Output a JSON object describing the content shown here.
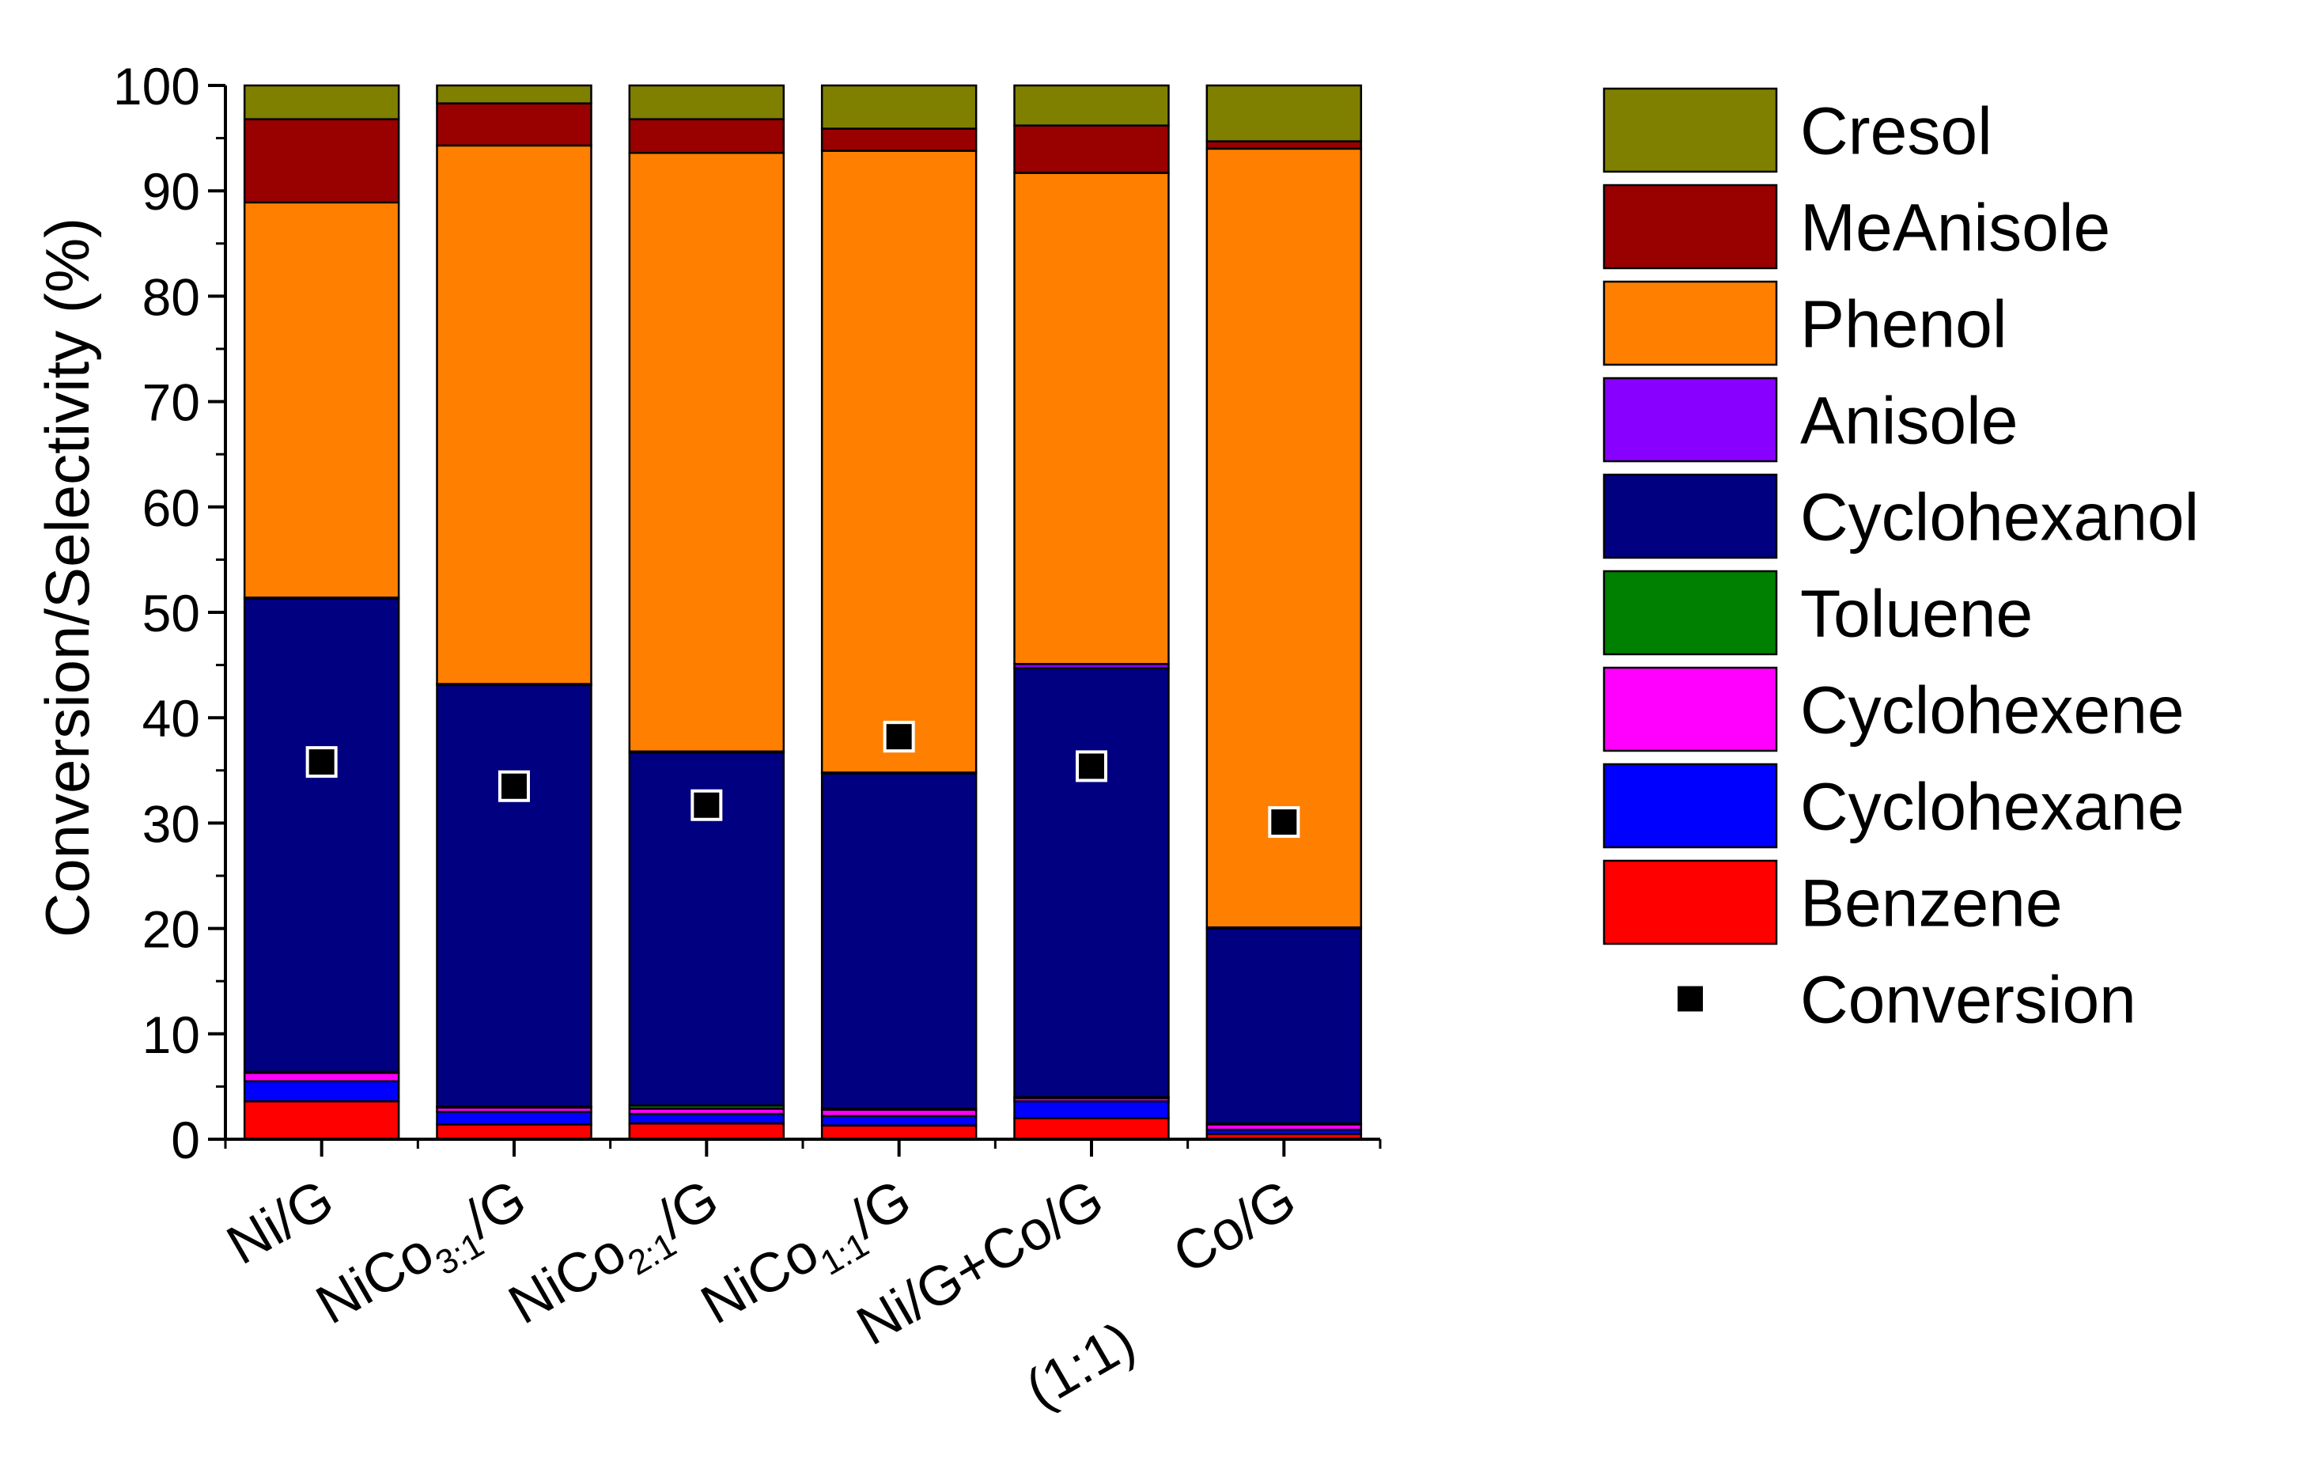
{
  "colors": {
    "Cresol": "#808000",
    "MeAnisole": "#990000",
    "Phenol": "#FF8000",
    "Anisole": "#8800FF",
    "Cyclohexanol": "#000080",
    "Toluene": "#008000",
    "Cyclohexene": "#FF00FF",
    "Cyclohexane": "#0000FF",
    "Benzene": "#FF0000",
    "Conversion": "#000000"
  },
  "chart_data": {
    "type": "bar",
    "stacked": true,
    "title": "",
    "xlabel": "",
    "ylabel": "Conversion/Selectivity (%)",
    "ylim": [
      0,
      100
    ],
    "yticks": [
      "0",
      "10",
      "20",
      "30",
      "40",
      "50",
      "60",
      "70",
      "80",
      "90",
      "100"
    ],
    "categories": [
      {
        "main": "Ni/G",
        "sub": "",
        "tail": "",
        "line2": ""
      },
      {
        "main": "NiCo",
        "sub": "3:1",
        "tail": "/G",
        "line2": ""
      },
      {
        "main": "NiCo",
        "sub": "2:1",
        "tail": "/G",
        "line2": ""
      },
      {
        "main": "NiCo",
        "sub": "1:1",
        "tail": "/G",
        "line2": ""
      },
      {
        "main": "Ni/G+Co/G",
        "sub": "",
        "tail": "",
        "line2": "(1:1)"
      },
      {
        "main": "Co/G",
        "sub": "",
        "tail": "",
        "line2": ""
      }
    ],
    "series": [
      {
        "name": "Benzene",
        "values": [
          3.6,
          1.4,
          1.5,
          1.3,
          2.0,
          0.5
        ]
      },
      {
        "name": "Cyclohexane",
        "values": [
          1.9,
          1.2,
          0.9,
          0.9,
          1.6,
          0.4
        ]
      },
      {
        "name": "Cyclohexene",
        "values": [
          0.8,
          0.4,
          0.5,
          0.6,
          0.3,
          0.5
        ]
      },
      {
        "name": "Toluene",
        "values": [
          0.1,
          0.1,
          0.3,
          0.1,
          0.1,
          0.1
        ]
      },
      {
        "name": "Cyclohexanol",
        "values": [
          44.9,
          40.0,
          33.5,
          31.8,
          40.7,
          18.5
        ]
      },
      {
        "name": "Anisole",
        "values": [
          0.1,
          0.1,
          0.1,
          0.1,
          0.4,
          0.1
        ]
      },
      {
        "name": "Phenol",
        "values": [
          37.5,
          51.1,
          56.8,
          59.0,
          46.6,
          73.9
        ]
      },
      {
        "name": "MeAnisole",
        "values": [
          7.9,
          4.0,
          3.2,
          2.1,
          4.5,
          0.7
        ]
      },
      {
        "name": "Cresol",
        "values": [
          3.2,
          1.7,
          3.2,
          4.1,
          3.8,
          5.3
        ]
      }
    ],
    "conversion": {
      "name": "Conversion",
      "values": [
        35.8,
        33.5,
        31.7,
        38.2,
        35.4,
        30.1
      ]
    },
    "legend": {
      "position": "right",
      "entries": [
        "Cresol",
        "MeAnisole",
        "Phenol",
        "Anisole",
        "Cyclohexanol",
        "Toluene",
        "Cyclohexene",
        "Cyclohexane",
        "Benzene",
        "Conversion"
      ]
    }
  }
}
